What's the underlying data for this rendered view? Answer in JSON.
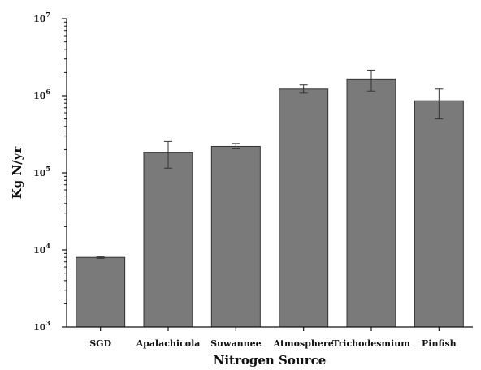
{
  "chart_data": {
    "type": "bar",
    "title": "",
    "xlabel": "Nitrogen Source",
    "ylabel": "Kg N/yr",
    "yscale": "log",
    "ylim": [
      1000,
      10000000
    ],
    "y_tick_labels": [
      {
        "base": "10",
        "exp": "3"
      },
      {
        "base": "10",
        "exp": "4"
      },
      {
        "base": "10",
        "exp": "5"
      },
      {
        "base": "10",
        "exp": "6"
      },
      {
        "base": "10",
        "exp": "7"
      }
    ],
    "categories": [
      "SGD",
      "Apalachicola",
      "Suwannee",
      "Atmosphere",
      "Trichodesmium",
      "Pinfish"
    ],
    "values": [
      8000,
      185000,
      220000,
      1220000,
      1650000,
      860000
    ],
    "error_low": [
      7800,
      115000,
      205000,
      1080000,
      1150000,
      500000
    ],
    "error_high": [
      8200,
      255000,
      240000,
      1380000,
      2150000,
      1220000
    ],
    "bar_color": "#7a7a7a",
    "grid": false
  }
}
